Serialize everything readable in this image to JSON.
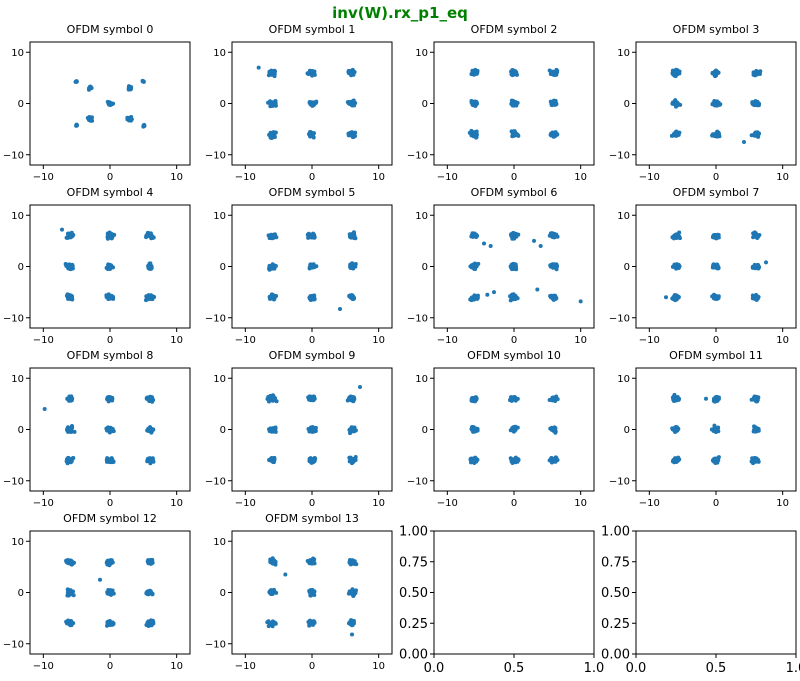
{
  "figure": {
    "title": "inv(W).rx_p1_eq",
    "title_color": "#008000",
    "point_color": "#1f77b4",
    "grid": false
  },
  "chart_data": [
    {
      "type": "scatter",
      "title": "OFDM symbol 0",
      "xlim": [
        -12,
        12
      ],
      "ylim": [
        -12,
        12
      ],
      "xticks": [
        -10,
        0,
        10
      ],
      "yticks": [
        -10,
        0,
        10
      ],
      "constellation": "qpsk_bpsk",
      "outliers": []
    },
    {
      "type": "scatter",
      "title": "OFDM symbol 1",
      "xlim": [
        -12,
        12
      ],
      "ylim": [
        -12,
        12
      ],
      "xticks": [
        -10,
        0,
        10
      ],
      "yticks": [
        -10,
        0,
        10
      ],
      "constellation": "grid9",
      "outliers": [
        [
          -8,
          7
        ]
      ]
    },
    {
      "type": "scatter",
      "title": "OFDM symbol 2",
      "xlim": [
        -12,
        12
      ],
      "ylim": [
        -12,
        12
      ],
      "xticks": [
        -10,
        0,
        10
      ],
      "yticks": [
        -10,
        0,
        10
      ],
      "constellation": "grid9",
      "outliers": []
    },
    {
      "type": "scatter",
      "title": "OFDM symbol 3",
      "xlim": [
        -12,
        12
      ],
      "ylim": [
        -12,
        12
      ],
      "xticks": [
        -10,
        0,
        10
      ],
      "yticks": [
        -10,
        0,
        10
      ],
      "constellation": "grid9",
      "outliers": [
        [
          4.2,
          -7.5
        ]
      ]
    },
    {
      "type": "scatter",
      "title": "OFDM symbol 4",
      "xlim": [
        -12,
        12
      ],
      "ylim": [
        -12,
        12
      ],
      "xticks": [
        -10,
        0,
        10
      ],
      "yticks": [
        -10,
        0,
        10
      ],
      "constellation": "grid9",
      "outliers": [
        [
          -7.2,
          7.2
        ]
      ]
    },
    {
      "type": "scatter",
      "title": "OFDM symbol 5",
      "xlim": [
        -12,
        12
      ],
      "ylim": [
        -12,
        12
      ],
      "xticks": [
        -10,
        0,
        10
      ],
      "yticks": [
        -10,
        0,
        10
      ],
      "constellation": "grid9",
      "outliers": [
        [
          4.2,
          -8.3
        ]
      ]
    },
    {
      "type": "scatter",
      "title": "OFDM symbol 6",
      "xlim": [
        -12,
        12
      ],
      "ylim": [
        -12,
        12
      ],
      "xticks": [
        -10,
        0,
        10
      ],
      "yticks": [
        -10,
        0,
        10
      ],
      "constellation": "grid9",
      "outliers": [
        [
          -4.5,
          4.5
        ],
        [
          -3.5,
          4
        ],
        [
          3,
          5
        ],
        [
          4,
          4
        ],
        [
          -3,
          -5
        ],
        [
          -4,
          -5.5
        ],
        [
          3.5,
          -4.5
        ],
        [
          10,
          -6.8
        ]
      ]
    },
    {
      "type": "scatter",
      "title": "OFDM symbol 7",
      "xlim": [
        -12,
        12
      ],
      "ylim": [
        -12,
        12
      ],
      "xticks": [
        -10,
        0,
        10
      ],
      "yticks": [
        -10,
        0,
        10
      ],
      "constellation": "grid9",
      "outliers": [
        [
          -7.5,
          -6
        ],
        [
          7.5,
          0.8
        ]
      ]
    },
    {
      "type": "scatter",
      "title": "OFDM symbol 8",
      "xlim": [
        -12,
        12
      ],
      "ylim": [
        -12,
        12
      ],
      "xticks": [
        -10,
        0,
        10
      ],
      "yticks": [
        -10,
        0,
        10
      ],
      "constellation": "grid9",
      "outliers": [
        [
          -9.8,
          4
        ]
      ]
    },
    {
      "type": "scatter",
      "title": "OFDM symbol 9",
      "xlim": [
        -12,
        12
      ],
      "ylim": [
        -12,
        12
      ],
      "xticks": [
        -10,
        0,
        10
      ],
      "yticks": [
        -10,
        0,
        10
      ],
      "constellation": "grid9",
      "outliers": [
        [
          7.2,
          8.3
        ]
      ]
    },
    {
      "type": "scatter",
      "title": "OFDM symbol 10",
      "xlim": [
        -12,
        12
      ],
      "ylim": [
        -12,
        12
      ],
      "xticks": [
        -10,
        0,
        10
      ],
      "yticks": [
        -10,
        0,
        10
      ],
      "constellation": "grid9",
      "outliers": []
    },
    {
      "type": "scatter",
      "title": "OFDM symbol 11",
      "xlim": [
        -12,
        12
      ],
      "ylim": [
        -12,
        12
      ],
      "xticks": [
        -10,
        0,
        10
      ],
      "yticks": [
        -10,
        0,
        10
      ],
      "constellation": "grid9",
      "outliers": [
        [
          -1.5,
          6
        ]
      ]
    },
    {
      "type": "scatter",
      "title": "OFDM symbol 12",
      "xlim": [
        -12,
        12
      ],
      "ylim": [
        -12,
        12
      ],
      "xticks": [
        -10,
        0,
        10
      ],
      "yticks": [
        -10,
        0,
        10
      ],
      "constellation": "grid9",
      "outliers": [
        [
          -1.5,
          2.5
        ]
      ]
    },
    {
      "type": "scatter",
      "title": "OFDM symbol 13",
      "xlim": [
        -12,
        12
      ],
      "ylim": [
        -12,
        12
      ],
      "xticks": [
        -10,
        0,
        10
      ],
      "yticks": [
        -10,
        0,
        10
      ],
      "constellation": "grid9",
      "outliers": [
        [
          -4,
          3.5
        ],
        [
          6,
          -8.2
        ]
      ]
    },
    {
      "type": "scatter",
      "title": "",
      "xlim": [
        0,
        1
      ],
      "ylim": [
        0,
        1
      ],
      "xticks": [
        "0.0",
        "0.5",
        "1.0"
      ],
      "yticks": [
        "0.00",
        "0.25",
        "0.50",
        "0.75",
        "1.00"
      ],
      "constellation": "empty",
      "outliers": []
    },
    {
      "type": "scatter",
      "title": "",
      "xlim": [
        0,
        1
      ],
      "ylim": [
        0,
        1
      ],
      "xticks": [
        "0.0",
        "0.5",
        "1.0"
      ],
      "yticks": [
        "0.00",
        "0.25",
        "0.50",
        "0.75",
        "1.00"
      ],
      "constellation": "empty",
      "outliers": []
    }
  ]
}
